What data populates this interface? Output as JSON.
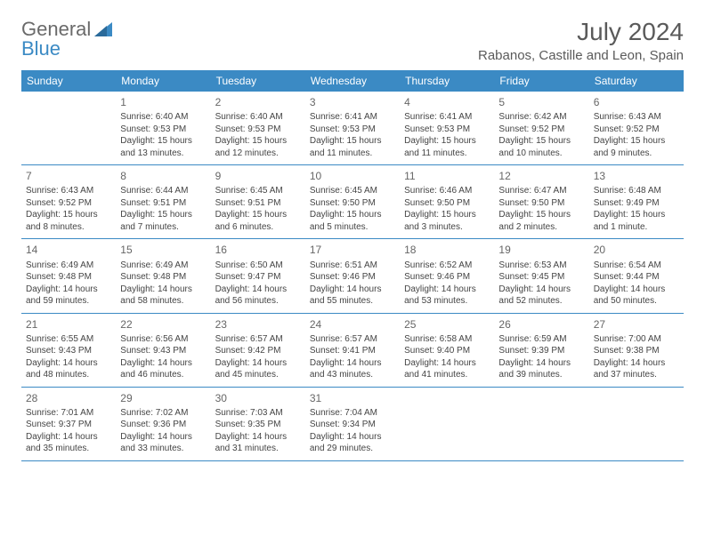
{
  "logo": {
    "text1": "General",
    "text2": "Blue"
  },
  "title": "July 2024",
  "location": "Rabanos, Castille and Leon, Spain",
  "colors": {
    "header_bg": "#3b8ac4",
    "header_text": "#ffffff",
    "border": "#3b8ac4",
    "body_text": "#444444",
    "title_text": "#5a5a5a",
    "logo_gray": "#6a6a6a",
    "logo_blue": "#3b8ac4",
    "background": "#ffffff"
  },
  "weekdays": [
    "Sunday",
    "Monday",
    "Tuesday",
    "Wednesday",
    "Thursday",
    "Friday",
    "Saturday"
  ],
  "weeks": [
    [
      {
        "num": "",
        "sunrise": "",
        "sunset": "",
        "daylight": ""
      },
      {
        "num": "1",
        "sunrise": "Sunrise: 6:40 AM",
        "sunset": "Sunset: 9:53 PM",
        "daylight": "Daylight: 15 hours and 13 minutes."
      },
      {
        "num": "2",
        "sunrise": "Sunrise: 6:40 AM",
        "sunset": "Sunset: 9:53 PM",
        "daylight": "Daylight: 15 hours and 12 minutes."
      },
      {
        "num": "3",
        "sunrise": "Sunrise: 6:41 AM",
        "sunset": "Sunset: 9:53 PM",
        "daylight": "Daylight: 15 hours and 11 minutes."
      },
      {
        "num": "4",
        "sunrise": "Sunrise: 6:41 AM",
        "sunset": "Sunset: 9:53 PM",
        "daylight": "Daylight: 15 hours and 11 minutes."
      },
      {
        "num": "5",
        "sunrise": "Sunrise: 6:42 AM",
        "sunset": "Sunset: 9:52 PM",
        "daylight": "Daylight: 15 hours and 10 minutes."
      },
      {
        "num": "6",
        "sunrise": "Sunrise: 6:43 AM",
        "sunset": "Sunset: 9:52 PM",
        "daylight": "Daylight: 15 hours and 9 minutes."
      }
    ],
    [
      {
        "num": "7",
        "sunrise": "Sunrise: 6:43 AM",
        "sunset": "Sunset: 9:52 PM",
        "daylight": "Daylight: 15 hours and 8 minutes."
      },
      {
        "num": "8",
        "sunrise": "Sunrise: 6:44 AM",
        "sunset": "Sunset: 9:51 PM",
        "daylight": "Daylight: 15 hours and 7 minutes."
      },
      {
        "num": "9",
        "sunrise": "Sunrise: 6:45 AM",
        "sunset": "Sunset: 9:51 PM",
        "daylight": "Daylight: 15 hours and 6 minutes."
      },
      {
        "num": "10",
        "sunrise": "Sunrise: 6:45 AM",
        "sunset": "Sunset: 9:50 PM",
        "daylight": "Daylight: 15 hours and 5 minutes."
      },
      {
        "num": "11",
        "sunrise": "Sunrise: 6:46 AM",
        "sunset": "Sunset: 9:50 PM",
        "daylight": "Daylight: 15 hours and 3 minutes."
      },
      {
        "num": "12",
        "sunrise": "Sunrise: 6:47 AM",
        "sunset": "Sunset: 9:50 PM",
        "daylight": "Daylight: 15 hours and 2 minutes."
      },
      {
        "num": "13",
        "sunrise": "Sunrise: 6:48 AM",
        "sunset": "Sunset: 9:49 PM",
        "daylight": "Daylight: 15 hours and 1 minute."
      }
    ],
    [
      {
        "num": "14",
        "sunrise": "Sunrise: 6:49 AM",
        "sunset": "Sunset: 9:48 PM",
        "daylight": "Daylight: 14 hours and 59 minutes."
      },
      {
        "num": "15",
        "sunrise": "Sunrise: 6:49 AM",
        "sunset": "Sunset: 9:48 PM",
        "daylight": "Daylight: 14 hours and 58 minutes."
      },
      {
        "num": "16",
        "sunrise": "Sunrise: 6:50 AM",
        "sunset": "Sunset: 9:47 PM",
        "daylight": "Daylight: 14 hours and 56 minutes."
      },
      {
        "num": "17",
        "sunrise": "Sunrise: 6:51 AM",
        "sunset": "Sunset: 9:46 PM",
        "daylight": "Daylight: 14 hours and 55 minutes."
      },
      {
        "num": "18",
        "sunrise": "Sunrise: 6:52 AM",
        "sunset": "Sunset: 9:46 PM",
        "daylight": "Daylight: 14 hours and 53 minutes."
      },
      {
        "num": "19",
        "sunrise": "Sunrise: 6:53 AM",
        "sunset": "Sunset: 9:45 PM",
        "daylight": "Daylight: 14 hours and 52 minutes."
      },
      {
        "num": "20",
        "sunrise": "Sunrise: 6:54 AM",
        "sunset": "Sunset: 9:44 PM",
        "daylight": "Daylight: 14 hours and 50 minutes."
      }
    ],
    [
      {
        "num": "21",
        "sunrise": "Sunrise: 6:55 AM",
        "sunset": "Sunset: 9:43 PM",
        "daylight": "Daylight: 14 hours and 48 minutes."
      },
      {
        "num": "22",
        "sunrise": "Sunrise: 6:56 AM",
        "sunset": "Sunset: 9:43 PM",
        "daylight": "Daylight: 14 hours and 46 minutes."
      },
      {
        "num": "23",
        "sunrise": "Sunrise: 6:57 AM",
        "sunset": "Sunset: 9:42 PM",
        "daylight": "Daylight: 14 hours and 45 minutes."
      },
      {
        "num": "24",
        "sunrise": "Sunrise: 6:57 AM",
        "sunset": "Sunset: 9:41 PM",
        "daylight": "Daylight: 14 hours and 43 minutes."
      },
      {
        "num": "25",
        "sunrise": "Sunrise: 6:58 AM",
        "sunset": "Sunset: 9:40 PM",
        "daylight": "Daylight: 14 hours and 41 minutes."
      },
      {
        "num": "26",
        "sunrise": "Sunrise: 6:59 AM",
        "sunset": "Sunset: 9:39 PM",
        "daylight": "Daylight: 14 hours and 39 minutes."
      },
      {
        "num": "27",
        "sunrise": "Sunrise: 7:00 AM",
        "sunset": "Sunset: 9:38 PM",
        "daylight": "Daylight: 14 hours and 37 minutes."
      }
    ],
    [
      {
        "num": "28",
        "sunrise": "Sunrise: 7:01 AM",
        "sunset": "Sunset: 9:37 PM",
        "daylight": "Daylight: 14 hours and 35 minutes."
      },
      {
        "num": "29",
        "sunrise": "Sunrise: 7:02 AM",
        "sunset": "Sunset: 9:36 PM",
        "daylight": "Daylight: 14 hours and 33 minutes."
      },
      {
        "num": "30",
        "sunrise": "Sunrise: 7:03 AM",
        "sunset": "Sunset: 9:35 PM",
        "daylight": "Daylight: 14 hours and 31 minutes."
      },
      {
        "num": "31",
        "sunrise": "Sunrise: 7:04 AM",
        "sunset": "Sunset: 9:34 PM",
        "daylight": "Daylight: 14 hours and 29 minutes."
      },
      {
        "num": "",
        "sunrise": "",
        "sunset": "",
        "daylight": ""
      },
      {
        "num": "",
        "sunrise": "",
        "sunset": "",
        "daylight": ""
      },
      {
        "num": "",
        "sunrise": "",
        "sunset": "",
        "daylight": ""
      }
    ]
  ]
}
